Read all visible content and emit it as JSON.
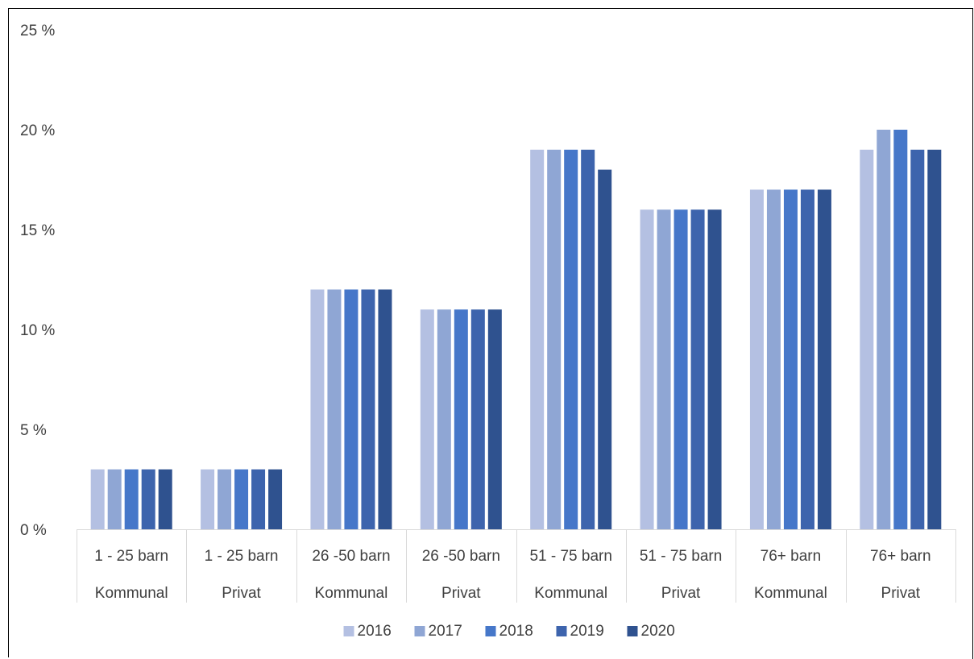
{
  "chart_data": {
    "type": "bar",
    "title": "",
    "xlabel": "",
    "ylabel": "",
    "ylim": [
      0,
      25
    ],
    "y_ticks": [
      0,
      5,
      10,
      15,
      20,
      25
    ],
    "y_tick_labels": [
      "0 %",
      "5 %",
      "10 %",
      "15 %",
      "20 %",
      "25 %"
    ],
    "grid": false,
    "legend_position": "bottom",
    "categories": [
      {
        "size": "1 - 25 barn",
        "owner": "Kommunal"
      },
      {
        "size": "1 - 25 barn",
        "owner": "Privat"
      },
      {
        "size": "26 -50 barn",
        "owner": "Kommunal"
      },
      {
        "size": "26 -50 barn",
        "owner": "Privat"
      },
      {
        "size": "51 - 75 barn",
        "owner": "Kommunal"
      },
      {
        "size": "51 - 75 barn",
        "owner": "Privat"
      },
      {
        "size": "76+ barn",
        "owner": "Kommunal"
      },
      {
        "size": "76+ barn",
        "owner": "Privat"
      }
    ],
    "series": [
      {
        "name": "2016",
        "color": "#B4C0E2",
        "values": [
          3,
          3,
          12,
          11,
          19,
          16,
          17,
          19
        ]
      },
      {
        "name": "2017",
        "color": "#8FA6D4",
        "values": [
          3,
          3,
          12,
          11,
          19,
          16,
          17,
          20
        ]
      },
      {
        "name": "2018",
        "color": "#4677C9",
        "values": [
          3,
          3,
          12,
          11,
          19,
          16,
          17,
          20
        ]
      },
      {
        "name": "2019",
        "color": "#3D64AD",
        "values": [
          3,
          3,
          12,
          11,
          19,
          16,
          17,
          19
        ]
      },
      {
        "name": "2020",
        "color": "#2F528F",
        "values": [
          3,
          3,
          12,
          11,
          18,
          16,
          17,
          19
        ]
      }
    ]
  }
}
